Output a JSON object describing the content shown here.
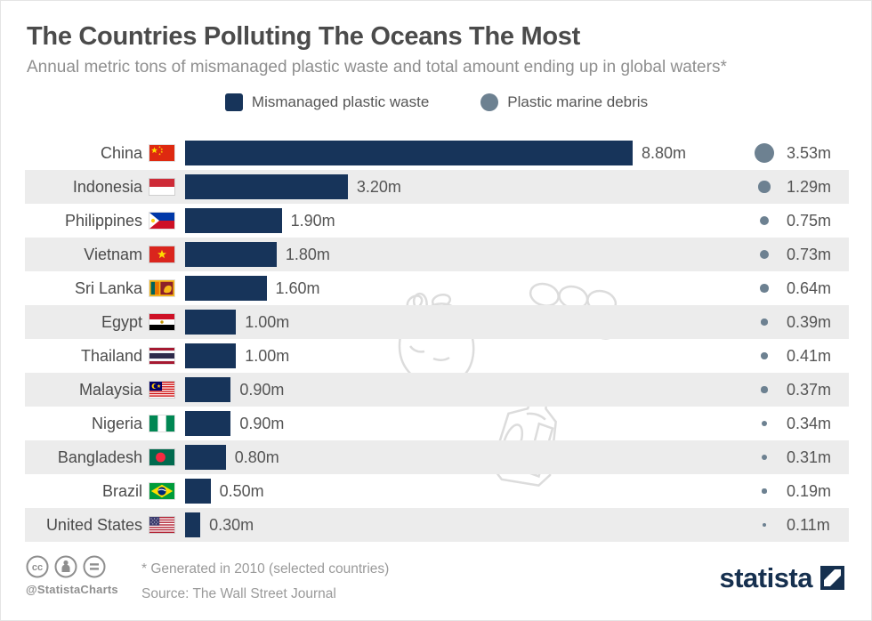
{
  "header": {
    "title": "The Countries Polluting The Oceans The Most",
    "subtitle": "Annual metric tons of mismanaged plastic waste and total amount ending up in global waters*"
  },
  "legend": {
    "waste_label": "Mismanaged plastic waste",
    "debris_label": "Plastic marine debris"
  },
  "colors": {
    "bar": "#17345a",
    "debris_dot": "#6d8191",
    "stripe": "#ececec",
    "title": "#4b4b4b",
    "subtitle": "#8f8f8f"
  },
  "rows": [
    {
      "country": "China",
      "flag": "cn",
      "waste_value": 8.8,
      "waste_label": "8.80m",
      "debris_value": 3.53,
      "debris_label": "3.53m"
    },
    {
      "country": "Indonesia",
      "flag": "id",
      "waste_value": 3.2,
      "waste_label": "3.20m",
      "debris_value": 1.29,
      "debris_label": "1.29m"
    },
    {
      "country": "Philippines",
      "flag": "ph",
      "waste_value": 1.9,
      "waste_label": "1.90m",
      "debris_value": 0.75,
      "debris_label": "0.75m"
    },
    {
      "country": "Vietnam",
      "flag": "vn",
      "waste_value": 1.8,
      "waste_label": "1.80m",
      "debris_value": 0.73,
      "debris_label": "0.73m"
    },
    {
      "country": "Sri Lanka",
      "flag": "lk",
      "waste_value": 1.6,
      "waste_label": "1.60m",
      "debris_value": 0.64,
      "debris_label": "0.64m"
    },
    {
      "country": "Egypt",
      "flag": "eg",
      "waste_value": 1.0,
      "waste_label": "1.00m",
      "debris_value": 0.39,
      "debris_label": "0.39m"
    },
    {
      "country": "Thailand",
      "flag": "th",
      "waste_value": 1.0,
      "waste_label": "1.00m",
      "debris_value": 0.41,
      "debris_label": "0.41m"
    },
    {
      "country": "Malaysia",
      "flag": "my",
      "waste_value": 0.9,
      "waste_label": "0.90m",
      "debris_value": 0.37,
      "debris_label": "0.37m"
    },
    {
      "country": "Nigeria",
      "flag": "ng",
      "waste_value": 0.9,
      "waste_label": "0.90m",
      "debris_value": 0.34,
      "debris_label": "0.34m"
    },
    {
      "country": "Bangladesh",
      "flag": "bd",
      "waste_value": 0.8,
      "waste_label": "0.80m",
      "debris_value": 0.31,
      "debris_label": "0.31m"
    },
    {
      "country": "Brazil",
      "flag": "br",
      "waste_value": 0.5,
      "waste_label": "0.50m",
      "debris_value": 0.19,
      "debris_label": "0.19m"
    },
    {
      "country": "United States",
      "flag": "us",
      "waste_value": 0.3,
      "waste_label": "0.30m",
      "debris_value": 0.11,
      "debris_label": "0.11m"
    }
  ],
  "footer": {
    "handle": "@StatistaCharts",
    "footnote": "* Generated in 2010 (selected countries)",
    "source": "Source: The Wall Street Journal",
    "brand": "statista"
  },
  "chart_data": {
    "type": "bar",
    "orientation": "horizontal",
    "title": "The Countries Polluting The Oceans The Most",
    "subtitle": "Annual metric tons of mismanaged plastic waste and total amount ending up in global waters*",
    "categories": [
      "China",
      "Indonesia",
      "Philippines",
      "Vietnam",
      "Sri Lanka",
      "Egypt",
      "Thailand",
      "Malaysia",
      "Nigeria",
      "Bangladesh",
      "Brazil",
      "United States"
    ],
    "series": [
      {
        "name": "Mismanaged plastic waste",
        "unit": "million metric tons",
        "display": "bar",
        "values": [
          8.8,
          3.2,
          1.9,
          1.8,
          1.6,
          1.0,
          1.0,
          0.9,
          0.9,
          0.8,
          0.5,
          0.3
        ]
      },
      {
        "name": "Plastic marine debris",
        "unit": "million metric tons",
        "display": "sized-dot",
        "values": [
          3.53,
          1.29,
          0.75,
          0.73,
          0.64,
          0.39,
          0.41,
          0.37,
          0.34,
          0.31,
          0.19,
          0.11
        ]
      }
    ],
    "xlim": [
      0,
      8.8
    ],
    "grid": false,
    "legend_position": "top-center",
    "note": "* Generated in 2010 (selected countries)",
    "source": "The Wall Street Journal"
  }
}
